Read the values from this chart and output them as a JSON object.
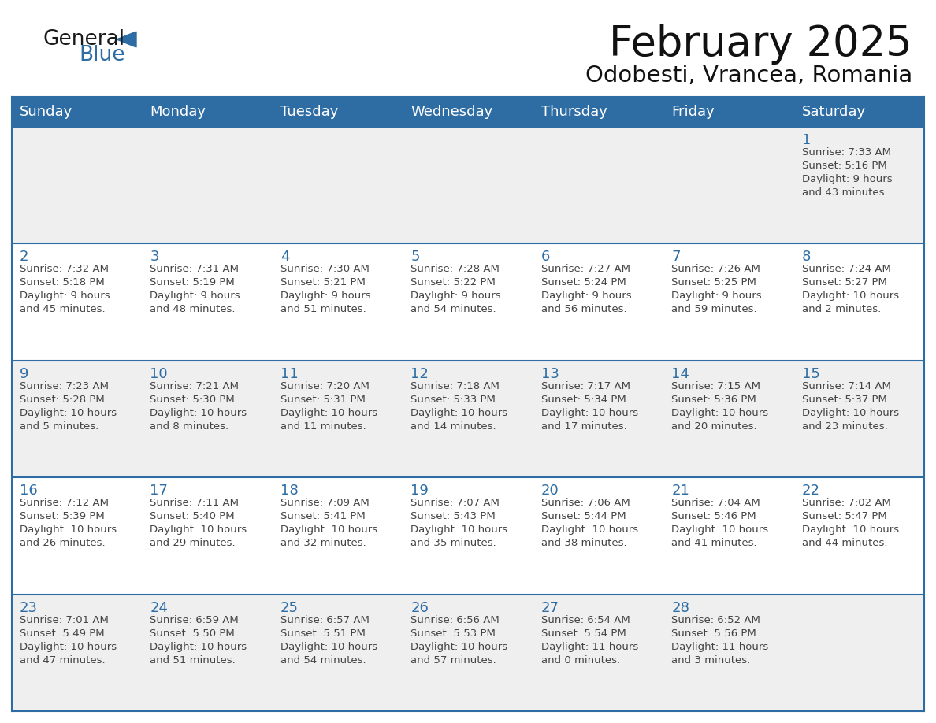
{
  "title": "February 2025",
  "subtitle": "Odobesti, Vrancea, Romania",
  "header_bg": "#2E6DA4",
  "header_text_color": "#FFFFFF",
  "row_bg_colors": [
    "#EFEFEF",
    "#FFFFFF",
    "#EFEFEF",
    "#FFFFFF",
    "#EFEFEF"
  ],
  "day_number_color": "#2E6DA4",
  "text_color": "#444444",
  "separator_color": "#2E6DA4",
  "days_of_week": [
    "Sunday",
    "Monday",
    "Tuesday",
    "Wednesday",
    "Thursday",
    "Friday",
    "Saturday"
  ],
  "logo_text1": "General",
  "logo_text2": "Blue",
  "logo_color1": "#1a1a1a",
  "logo_color2": "#2E6DA4",
  "calendar_data": [
    [
      null,
      null,
      null,
      null,
      null,
      null,
      {
        "day": 1,
        "sunrise": "7:33 AM",
        "sunset": "5:16 PM",
        "daylight": "9 hours and 43 minutes."
      }
    ],
    [
      {
        "day": 2,
        "sunrise": "7:32 AM",
        "sunset": "5:18 PM",
        "daylight": "9 hours and 45 minutes."
      },
      {
        "day": 3,
        "sunrise": "7:31 AM",
        "sunset": "5:19 PM",
        "daylight": "9 hours and 48 minutes."
      },
      {
        "day": 4,
        "sunrise": "7:30 AM",
        "sunset": "5:21 PM",
        "daylight": "9 hours and 51 minutes."
      },
      {
        "day": 5,
        "sunrise": "7:28 AM",
        "sunset": "5:22 PM",
        "daylight": "9 hours and 54 minutes."
      },
      {
        "day": 6,
        "sunrise": "7:27 AM",
        "sunset": "5:24 PM",
        "daylight": "9 hours and 56 minutes."
      },
      {
        "day": 7,
        "sunrise": "7:26 AM",
        "sunset": "5:25 PM",
        "daylight": "9 hours and 59 minutes."
      },
      {
        "day": 8,
        "sunrise": "7:24 AM",
        "sunset": "5:27 PM",
        "daylight": "10 hours and 2 minutes."
      }
    ],
    [
      {
        "day": 9,
        "sunrise": "7:23 AM",
        "sunset": "5:28 PM",
        "daylight": "10 hours and 5 minutes."
      },
      {
        "day": 10,
        "sunrise": "7:21 AM",
        "sunset": "5:30 PM",
        "daylight": "10 hours and 8 minutes."
      },
      {
        "day": 11,
        "sunrise": "7:20 AM",
        "sunset": "5:31 PM",
        "daylight": "10 hours and 11 minutes."
      },
      {
        "day": 12,
        "sunrise": "7:18 AM",
        "sunset": "5:33 PM",
        "daylight": "10 hours and 14 minutes."
      },
      {
        "day": 13,
        "sunrise": "7:17 AM",
        "sunset": "5:34 PM",
        "daylight": "10 hours and 17 minutes."
      },
      {
        "day": 14,
        "sunrise": "7:15 AM",
        "sunset": "5:36 PM",
        "daylight": "10 hours and 20 minutes."
      },
      {
        "day": 15,
        "sunrise": "7:14 AM",
        "sunset": "5:37 PM",
        "daylight": "10 hours and 23 minutes."
      }
    ],
    [
      {
        "day": 16,
        "sunrise": "7:12 AM",
        "sunset": "5:39 PM",
        "daylight": "10 hours and 26 minutes."
      },
      {
        "day": 17,
        "sunrise": "7:11 AM",
        "sunset": "5:40 PM",
        "daylight": "10 hours and 29 minutes."
      },
      {
        "day": 18,
        "sunrise": "7:09 AM",
        "sunset": "5:41 PM",
        "daylight": "10 hours and 32 minutes."
      },
      {
        "day": 19,
        "sunrise": "7:07 AM",
        "sunset": "5:43 PM",
        "daylight": "10 hours and 35 minutes."
      },
      {
        "day": 20,
        "sunrise": "7:06 AM",
        "sunset": "5:44 PM",
        "daylight": "10 hours and 38 minutes."
      },
      {
        "day": 21,
        "sunrise": "7:04 AM",
        "sunset": "5:46 PM",
        "daylight": "10 hours and 41 minutes."
      },
      {
        "day": 22,
        "sunrise": "7:02 AM",
        "sunset": "5:47 PM",
        "daylight": "10 hours and 44 minutes."
      }
    ],
    [
      {
        "day": 23,
        "sunrise": "7:01 AM",
        "sunset": "5:49 PM",
        "daylight": "10 hours and 47 minutes."
      },
      {
        "day": 24,
        "sunrise": "6:59 AM",
        "sunset": "5:50 PM",
        "daylight": "10 hours and 51 minutes."
      },
      {
        "day": 25,
        "sunrise": "6:57 AM",
        "sunset": "5:51 PM",
        "daylight": "10 hours and 54 minutes."
      },
      {
        "day": 26,
        "sunrise": "6:56 AM",
        "sunset": "5:53 PM",
        "daylight": "10 hours and 57 minutes."
      },
      {
        "day": 27,
        "sunrise": "6:54 AM",
        "sunset": "5:54 PM",
        "daylight": "11 hours and 0 minutes."
      },
      {
        "day": 28,
        "sunrise": "6:52 AM",
        "sunset": "5:56 PM",
        "daylight": "11 hours and 3 minutes."
      },
      null
    ]
  ]
}
